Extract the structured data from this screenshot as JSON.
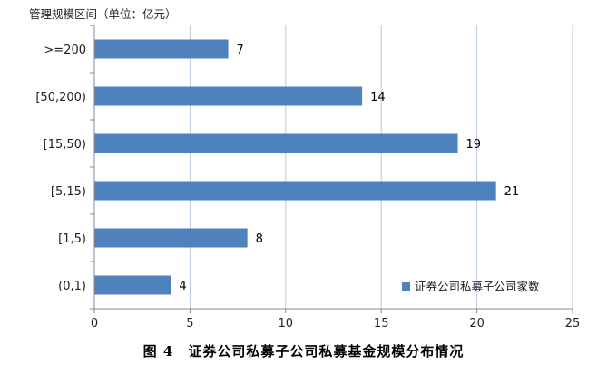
{
  "caption": "图 4　证券公司私募子公司私募基金规模分布情况",
  "chart_data": {
    "type": "bar",
    "orientation": "horizontal",
    "ylabel": "管理规模区间（单位：亿元）",
    "categories": [
      ">=200",
      "[50,200)",
      "[15,50)",
      "[5,15)",
      "[1,5)",
      "(0,1)"
    ],
    "series": [
      {
        "name": "证券公司私募子公司家数",
        "values": [
          7,
          14,
          19,
          21,
          8,
          4
        ],
        "color": "#4f81bd"
      }
    ],
    "xlim": [
      0,
      25
    ],
    "xticks": [
      0,
      5,
      10,
      15,
      20,
      25
    ],
    "grid": "vertical",
    "legend": "bottom-right",
    "data_labels": true
  }
}
